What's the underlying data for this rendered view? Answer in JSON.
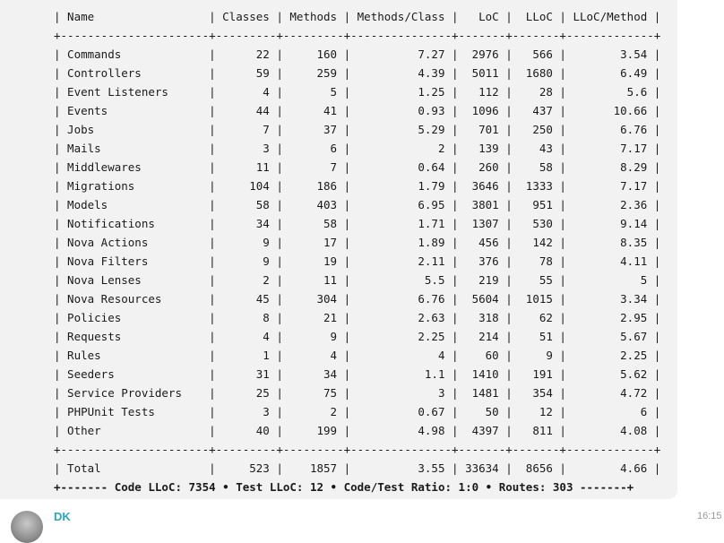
{
  "message": {
    "code_lines": [
      "| Name                 | Classes | Methods | Methods/Class |   LoC |  LLoC | LLoC/Method |",
      "+----------------------+---------+---------+---------------+-------+-------+-------------+",
      "| Commands             |      22 |     160 |          7.27 |  2976 |   566 |        3.54 |",
      "| Controllers          |      59 |     259 |          4.39 |  5011 |  1680 |        6.49 |",
      "| Event Listeners      |       4 |       5 |          1.25 |   112 |    28 |         5.6 |",
      "| Events               |      44 |      41 |          0.93 |  1096 |   437 |       10.66 |",
      "| Jobs                 |       7 |      37 |          5.29 |   701 |   250 |        6.76 |",
      "| Mails                |       3 |       6 |             2 |   139 |    43 |        7.17 |",
      "| Middlewares          |      11 |       7 |          0.64 |   260 |    58 |        8.29 |",
      "| Migrations           |     104 |     186 |          1.79 |  3646 |  1333 |        7.17 |",
      "| Models               |      58 |     403 |          6.95 |  3801 |   951 |        2.36 |",
      "| Notifications        |      34 |      58 |          1.71 |  1307 |   530 |        9.14 |",
      "| Nova Actions         |       9 |      17 |          1.89 |   456 |   142 |        8.35 |",
      "| Nova Filters         |       9 |      19 |          2.11 |   376 |    78 |        4.11 |",
      "| Nova Lenses          |       2 |      11 |           5.5 |   219 |    55 |           5 |",
      "| Nova Resources       |      45 |     304 |          6.76 |  5604 |  1015 |        3.34 |",
      "| Policies             |       8 |      21 |          2.63 |   318 |    62 |        2.95 |",
      "| Requests             |       4 |       9 |          2.25 |   214 |    51 |        5.67 |",
      "| Rules                |       1 |       4 |             4 |    60 |     9 |        2.25 |",
      "| Seeders              |      31 |      34 |           1.1 |  1410 |   191 |        5.62 |",
      "| Service Providers    |      25 |      75 |             3 |  1481 |   354 |        4.72 |",
      "| PHPUnit Tests        |       3 |       2 |          0.67 |    50 |    12 |           6 |",
      "| Other                |      40 |     199 |          4.98 |  4397 |   811 |        4.08 |",
      "+----------------------+---------+---------+---------------+-------+-------+-------------+",
      "| Total                |     523 |    1857 |          3.55 | 33634 |  8656 |        4.66 |"
    ],
    "footer_line": "+------- Code LLoC: 7354 • Test LLoC: 12 • Code/Test Ratio: 1:0 • Routes: 303 -------+"
  },
  "next_message": {
    "sender": "DK",
    "time": "16:15"
  }
}
